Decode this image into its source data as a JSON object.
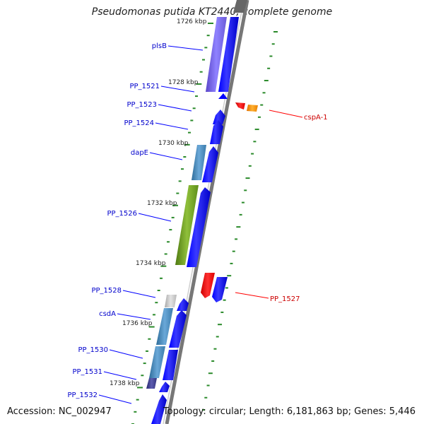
{
  "title": "Pseudomonas putida KT2440, complete genome",
  "accession": "Accession: NC_002947",
  "topology": "Topology: circular; Length: 6,181,863 bp; Genes: 5,446",
  "ticks": {
    "inner_kbp": [
      "1726 kbp",
      "1728 kbp",
      "1730 kbp",
      "1732 kbp",
      "1734 kbp",
      "1736 kbp",
      "1738 kbp"
    ]
  },
  "left_labels": [
    "plsB",
    "PP_1521",
    "PP_1523",
    "PP_1524",
    "dapE",
    "PP_1526",
    "PP_1528",
    "csdA",
    "PP_1530",
    "PP_1531",
    "PP_1532"
  ],
  "right_labels": [
    "cspA-1",
    "PP_1527"
  ],
  "colors": {
    "forward_gene": "#0000ff",
    "reverse_gene": "#ff0000",
    "label_left": "#0000cc",
    "label_right": "#cc0000",
    "tick_green": "#2a8a2a",
    "backbone": "#888888"
  }
}
